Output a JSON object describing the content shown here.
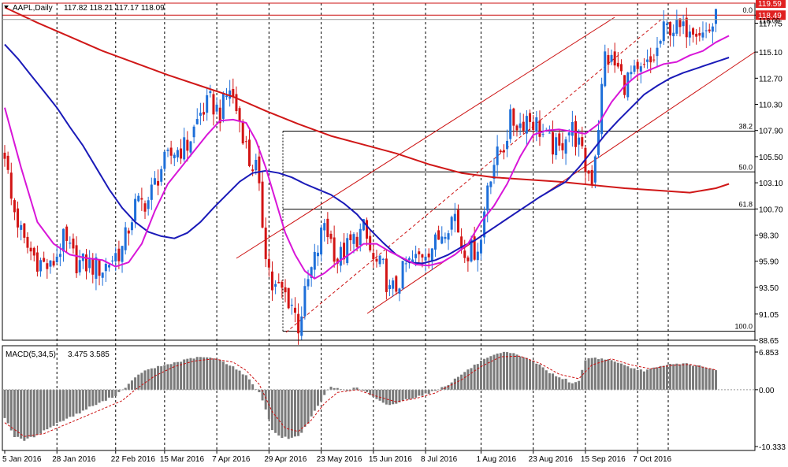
{
  "header": {
    "symbol_label": "AAPL,Daily",
    "ohlc": "117.82 118.21 117.17 118.09"
  },
  "colors": {
    "bull": "#1e6fd9",
    "bear": "#d21414",
    "sma_short": "#d816d8",
    "sma_mid": "#1a1ab8",
    "sma_long": "#d01818",
    "channel": "#cc1111",
    "fib": "#000000",
    "macd_bar": "#7a7a7a",
    "macd_signal": "#cc1111",
    "price_badge": "#e02020",
    "grid": "#000000"
  },
  "chart_data": [
    {
      "type": "candlestick",
      "ylim": [
        88.65,
        119.59
      ],
      "price_ticks": [
        "118.49",
        "117.75",
        "115.10",
        "112.70",
        "110.30",
        "107.90",
        "105.50",
        "103.10",
        "100.70",
        "98.30",
        "95.90",
        "93.50",
        "91.05",
        "88.65"
      ],
      "price_tick_values": [
        118.49,
        117.75,
        115.1,
        112.7,
        110.3,
        107.9,
        105.5,
        103.1,
        100.7,
        98.3,
        95.9,
        93.5,
        91.05,
        88.65
      ],
      "current_price": "118.09",
      "top_badge": "119.59",
      "x_labels": [
        "5 Jan 2016",
        "28 Jan 2016",
        "22 Feb 2016",
        "15 Mar 2016",
        "7 Apr 2016",
        "29 Apr 2016",
        "23 May 2016",
        "15 Jun 2016",
        "8 Jul 2016",
        "1 Aug 2016",
        "23 Aug 2016",
        "15 Sep 2016",
        "7 Oct 2016"
      ],
      "x_label_index": [
        0,
        16,
        34,
        49,
        65,
        81,
        97,
        113,
        129,
        146,
        162,
        178,
        194
      ],
      "bars": 230,
      "candle_path": [
        [
          0,
          106.0
        ],
        [
          2,
          101.5
        ],
        [
          6,
          97.5
        ],
        [
          10,
          96.0
        ],
        [
          14,
          95.2
        ],
        [
          18,
          97.8
        ],
        [
          22,
          95.8
        ],
        [
          26,
          95.5
        ],
        [
          30,
          95.2
        ],
        [
          34,
          96.5
        ],
        [
          36,
          97.0
        ],
        [
          40,
          101.0
        ],
        [
          44,
          101.5
        ],
        [
          48,
          104.5
        ],
        [
          52,
          106.0
        ],
        [
          56,
          106.5
        ],
        [
          60,
          109.5
        ],
        [
          63,
          110.5
        ],
        [
          66,
          109.5
        ],
        [
          69,
          111.8
        ],
        [
          71,
          109.8
        ],
        [
          73,
          107.8
        ],
        [
          75,
          105.0
        ],
        [
          77,
          104.5
        ],
        [
          80,
          97.0
        ],
        [
          82,
          93.5
        ],
        [
          85,
          93.2
        ],
        [
          88,
          92.0
        ],
        [
          90,
          90.0
        ],
        [
          93,
          94.0
        ],
        [
          96,
          97.0
        ],
        [
          98,
          99.5
        ],
        [
          102,
          96.0
        ],
        [
          106,
          97.5
        ],
        [
          110,
          98.8
        ],
        [
          113,
          95.8
        ],
        [
          116,
          95.2
        ],
        [
          118,
          93.0
        ],
        [
          120,
          93.5
        ],
        [
          123,
          95.5
        ],
        [
          126,
          96.0
        ],
        [
          129,
          97.0
        ],
        [
          132,
          97.5
        ],
        [
          135,
          99.2
        ],
        [
          138,
          100.2
        ],
        [
          140,
          97.5
        ],
        [
          142,
          96.8
        ],
        [
          144,
          97.0
        ],
        [
          146,
          97.8
        ],
        [
          148,
          103.2
        ],
        [
          150,
          105.0
        ],
        [
          153,
          106.5
        ],
        [
          155,
          108.8
        ],
        [
          158,
          108.5
        ],
        [
          160,
          109.2
        ],
        [
          163,
          108.5
        ],
        [
          166,
          107.0
        ],
        [
          168,
          106.5
        ],
        [
          170,
          106.0
        ],
        [
          172,
          107.8
        ],
        [
          174,
          108.0
        ],
        [
          176,
          106.5
        ],
        [
          178,
          104.5
        ],
        [
          180,
          103.5
        ],
        [
          182,
          108.5
        ],
        [
          184,
          114.8
        ],
        [
          186,
          114.2
        ],
        [
          188,
          113.5
        ],
        [
          190,
          112.2
        ],
        [
          192,
          113.0
        ],
        [
          194,
          112.8
        ],
        [
          196,
          113.5
        ],
        [
          198,
          114.0
        ],
        [
          200,
          115.2
        ],
        [
          202,
          117.0
        ],
        [
          204,
          117.5
        ],
        [
          206,
          117.2
        ],
        [
          208,
          117.0
        ],
        [
          210,
          117.8
        ],
        [
          212,
          117.5
        ],
        [
          214,
          116.8
        ],
        [
          216,
          117.2
        ],
        [
          218,
          118.09
        ]
      ],
      "sma_short_path": [
        [
          0,
          110.0
        ],
        [
          5,
          104.5
        ],
        [
          10,
          99.5
        ],
        [
          15,
          97.5
        ],
        [
          20,
          96.5
        ],
        [
          25,
          96.2
        ],
        [
          30,
          96.0
        ],
        [
          34,
          95.4
        ],
        [
          38,
          95.8
        ],
        [
          42,
          97.5
        ],
        [
          46,
          100.5
        ],
        [
          50,
          103.0
        ],
        [
          54,
          104.5
        ],
        [
          58,
          106.0
        ],
        [
          62,
          107.5
        ],
        [
          66,
          108.8
        ],
        [
          70,
          108.9
        ],
        [
          74,
          108.6
        ],
        [
          77,
          107.0
        ],
        [
          80,
          104.5
        ],
        [
          83,
          101.5
        ],
        [
          86,
          98.5
        ],
        [
          89,
          96.5
        ],
        [
          92,
          95.0
        ],
        [
          95,
          94.3
        ],
        [
          98,
          94.8
        ],
        [
          102,
          95.8
        ],
        [
          106,
          96.6
        ],
        [
          110,
          97.5
        ],
        [
          114,
          97.5
        ],
        [
          118,
          96.8
        ],
        [
          122,
          96.2
        ],
        [
          126,
          95.6
        ],
        [
          130,
          95.5
        ],
        [
          134,
          95.8
        ],
        [
          138,
          96.5
        ],
        [
          142,
          97.5
        ],
        [
          146,
          99.5
        ],
        [
          150,
          101.0
        ],
        [
          154,
          103.0
        ],
        [
          158,
          105.5
        ],
        [
          162,
          107.5
        ],
        [
          166,
          107.9
        ],
        [
          170,
          108.0
        ],
        [
          174,
          107.8
        ],
        [
          178,
          107.6
        ],
        [
          182,
          108.5
        ],
        [
          186,
          110.5
        ],
        [
          190,
          112.0
        ],
        [
          194,
          113.0
        ],
        [
          198,
          113.5
        ],
        [
          202,
          114.0
        ],
        [
          206,
          114.2
        ],
        [
          210,
          114.8
        ],
        [
          214,
          115.2
        ],
        [
          218,
          116.0
        ],
        [
          222,
          116.6
        ]
      ],
      "sma_mid_path": [
        [
          0,
          115.8
        ],
        [
          4,
          114.5
        ],
        [
          8,
          113.0
        ],
        [
          12,
          111.5
        ],
        [
          16,
          110.0
        ],
        [
          20,
          108.2
        ],
        [
          24,
          106.5
        ],
        [
          28,
          104.5
        ],
        [
          32,
          102.5
        ],
        [
          36,
          100.8
        ],
        [
          40,
          99.5
        ],
        [
          44,
          98.6
        ],
        [
          48,
          98.2
        ],
        [
          52,
          98.0
        ],
        [
          56,
          98.5
        ],
        [
          60,
          99.5
        ],
        [
          64,
          100.8
        ],
        [
          68,
          102.0
        ],
        [
          72,
          103.2
        ],
        [
          76,
          104.0
        ],
        [
          80,
          104.2
        ],
        [
          84,
          104.0
        ],
        [
          88,
          103.6
        ],
        [
          92,
          103.0
        ],
        [
          96,
          102.5
        ],
        [
          100,
          102.0
        ],
        [
          104,
          101.2
        ],
        [
          108,
          100.2
        ],
        [
          112,
          98.8
        ],
        [
          116,
          97.6
        ],
        [
          120,
          96.5
        ],
        [
          124,
          95.8
        ],
        [
          128,
          95.7
        ],
        [
          132,
          96.0
        ],
        [
          136,
          96.5
        ],
        [
          140,
          97.2
        ],
        [
          144,
          97.8
        ],
        [
          148,
          98.6
        ],
        [
          152,
          99.4
        ],
        [
          156,
          100.2
        ],
        [
          160,
          101.0
        ],
        [
          164,
          101.8
        ],
        [
          168,
          102.5
        ],
        [
          172,
          103.2
        ],
        [
          176,
          104.5
        ],
        [
          180,
          106.0
        ],
        [
          184,
          107.5
        ],
        [
          188,
          108.8
        ],
        [
          192,
          110.0
        ],
        [
          196,
          111.2
        ],
        [
          200,
          112.0
        ],
        [
          204,
          112.7
        ],
        [
          208,
          113.2
        ],
        [
          212,
          113.6
        ],
        [
          216,
          114.0
        ],
        [
          220,
          114.4
        ],
        [
          222,
          114.6
        ]
      ],
      "sma_long_path": [
        [
          0,
          119.2
        ],
        [
          10,
          117.8
        ],
        [
          20,
          116.5
        ],
        [
          30,
          115.2
        ],
        [
          40,
          114.1
        ],
        [
          50,
          113.0
        ],
        [
          60,
          112.0
        ],
        [
          70,
          111.0
        ],
        [
          80,
          109.7
        ],
        [
          90,
          108.5
        ],
        [
          100,
          107.4
        ],
        [
          110,
          106.6
        ],
        [
          120,
          105.8
        ],
        [
          130,
          104.8
        ],
        [
          140,
          104.0
        ],
        [
          150,
          103.6
        ],
        [
          160,
          103.4
        ],
        [
          170,
          103.2
        ],
        [
          180,
          102.9
        ],
        [
          190,
          102.6
        ],
        [
          200,
          102.4
        ],
        [
          210,
          102.2
        ],
        [
          218,
          102.6
        ],
        [
          222,
          103.0
        ]
      ],
      "fib_levels": [
        {
          "label": "0.0",
          "value": 118.49,
          "from_index": 200
        },
        {
          "label": "38.2",
          "value": 107.84,
          "from_index": 90
        },
        {
          "label": "50.0",
          "value": 104.1,
          "from_index": 90
        },
        {
          "label": "61.8",
          "value": 100.68,
          "from_index": 90
        },
        {
          "label": "100.0",
          "value": 89.47,
          "from_index": 90
        }
      ]
    },
    {
      "type": "histogram",
      "title": "MACD(5,34,5)",
      "values_label": "3.475 3.585",
      "ylim": [
        -10.333,
        6.853
      ],
      "ticks": [
        "6.853",
        "0.00",
        "-10.333"
      ],
      "tick_values": [
        6.853,
        0.0,
        -10.333
      ],
      "hist_path": [
        [
          0,
          -5.0
        ],
        [
          3,
          -8.5
        ],
        [
          6,
          -9.2
        ],
        [
          9,
          -8.5
        ],
        [
          12,
          -7.5
        ],
        [
          15,
          -6.5
        ],
        [
          18,
          -5.5
        ],
        [
          22,
          -4.5
        ],
        [
          26,
          -3.2
        ],
        [
          30,
          -2.2
        ],
        [
          34,
          -1.0
        ],
        [
          38,
          1.0
        ],
        [
          42,
          3.2
        ],
        [
          46,
          4.0
        ],
        [
          50,
          4.6
        ],
        [
          54,
          5.2
        ],
        [
          58,
          5.8
        ],
        [
          62,
          5.9
        ],
        [
          66,
          5.4
        ],
        [
          70,
          4.2
        ],
        [
          74,
          2.5
        ],
        [
          78,
          -0.5
        ],
        [
          80,
          -3.5
        ],
        [
          82,
          -7.2
        ],
        [
          84,
          -8.5
        ],
        [
          87,
          -8.8
        ],
        [
          90,
          -8.5
        ],
        [
          93,
          -6.0
        ],
        [
          96,
          -3.0
        ],
        [
          98,
          -1.0
        ],
        [
          100,
          0.5
        ],
        [
          102,
          0.2
        ],
        [
          105,
          0.0
        ],
        [
          108,
          0.3
        ],
        [
          111,
          -0.5
        ],
        [
          114,
          -1.8
        ],
        [
          117,
          -2.8
        ],
        [
          120,
          -2.5
        ],
        [
          123,
          -1.8
        ],
        [
          126,
          -1.3
        ],
        [
          129,
          -0.8
        ],
        [
          132,
          -0.2
        ],
        [
          136,
          1.0
        ],
        [
          140,
          2.8
        ],
        [
          143,
          4.0
        ],
        [
          146,
          5.2
        ],
        [
          150,
          6.2
        ],
        [
          153,
          6.8
        ],
        [
          156,
          6.5
        ],
        [
          160,
          5.8
        ],
        [
          164,
          4.5
        ],
        [
          166,
          3.5
        ],
        [
          168,
          2.8
        ],
        [
          170,
          2.2
        ],
        [
          172,
          2.0
        ],
        [
          174,
          1.0
        ],
        [
          176,
          1.5
        ],
        [
          178,
          5.5
        ],
        [
          180,
          5.8
        ],
        [
          184,
          5.6
        ],
        [
          188,
          5.0
        ],
        [
          192,
          3.8
        ],
        [
          196,
          3.5
        ],
        [
          200,
          4.0
        ],
        [
          204,
          4.6
        ],
        [
          208,
          4.8
        ],
        [
          212,
          4.4
        ],
        [
          216,
          3.8
        ],
        [
          218,
          3.5
        ]
      ],
      "signal_path": [
        [
          0,
          -6.0
        ],
        [
          6,
          -8.5
        ],
        [
          12,
          -8.0
        ],
        [
          18,
          -6.5
        ],
        [
          24,
          -5.0
        ],
        [
          30,
          -3.5
        ],
        [
          36,
          -2.0
        ],
        [
          40,
          0.0
        ],
        [
          46,
          2.5
        ],
        [
          52,
          4.2
        ],
        [
          58,
          5.2
        ],
        [
          64,
          5.6
        ],
        [
          70,
          5.0
        ],
        [
          74,
          3.5
        ],
        [
          78,
          1.0
        ],
        [
          82,
          -4.0
        ],
        [
          86,
          -7.0
        ],
        [
          90,
          -7.6
        ],
        [
          94,
          -5.5
        ],
        [
          98,
          -2.5
        ],
        [
          102,
          -0.5
        ],
        [
          108,
          0.0
        ],
        [
          114,
          -1.2
        ],
        [
          120,
          -2.2
        ],
        [
          126,
          -1.6
        ],
        [
          132,
          -0.6
        ],
        [
          140,
          1.8
        ],
        [
          146,
          4.2
        ],
        [
          152,
          6.0
        ],
        [
          158,
          6.1
        ],
        [
          164,
          4.8
        ],
        [
          170,
          2.8
        ],
        [
          176,
          2.0
        ],
        [
          180,
          4.5
        ],
        [
          186,
          5.6
        ],
        [
          192,
          4.5
        ],
        [
          198,
          3.8
        ],
        [
          204,
          4.4
        ],
        [
          210,
          4.6
        ],
        [
          218,
          3.585
        ]
      ]
    }
  ]
}
